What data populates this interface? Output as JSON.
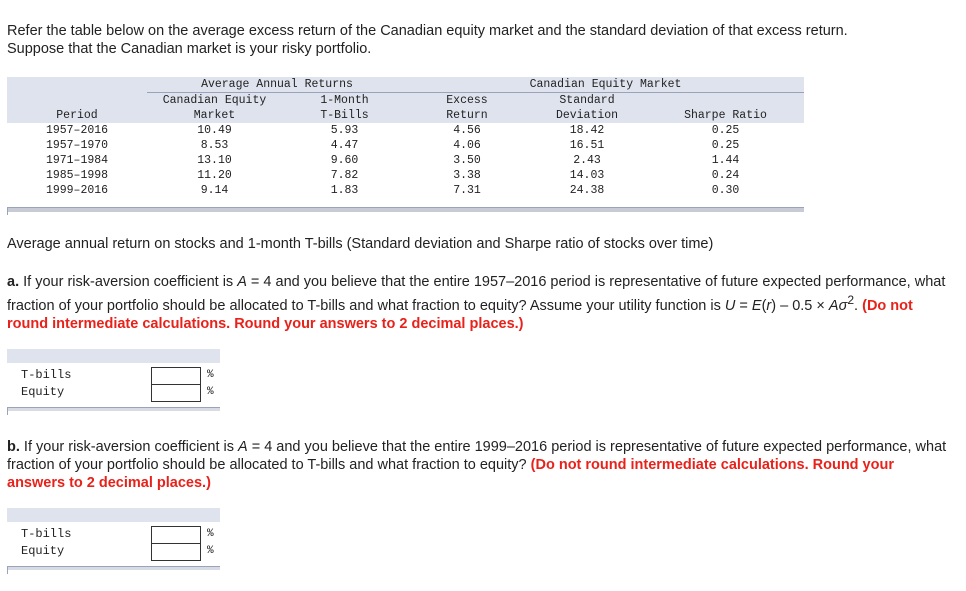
{
  "intro": {
    "line1": "Refer the table below on the average excess return of the Canadian equity market and the standard deviation of that excess return.",
    "line2": "Suppose that the Canadian market is your risky portfolio."
  },
  "table": {
    "group1": "Average Annual Returns",
    "group2": "Canadian Equity Market",
    "h_canadian_equity": "Canadian Equity",
    "h_one_month": "1-Month",
    "h_excess": "Excess",
    "h_standard": "Standard",
    "h_period": "Period",
    "h_market": "Market",
    "h_tbills": "T-Bills",
    "h_return": "Return",
    "h_deviation": "Deviation",
    "h_sharpe": "Sharpe Ratio",
    "rows": [
      {
        "period": "1957–2016",
        "market": "10.49",
        "tbills": "5.93",
        "excess": "4.56",
        "sd": "18.42",
        "sharpe": "0.25"
      },
      {
        "period": "1957–1970",
        "market": "8.53",
        "tbills": "4.47",
        "excess": "4.06",
        "sd": "16.51",
        "sharpe": "0.25"
      },
      {
        "period": "1971–1984",
        "market": "13.10",
        "tbills": "9.60",
        "excess": "3.50",
        "sd": "2.43",
        "sharpe": "1.44"
      },
      {
        "period": "1985–1998",
        "market": "11.20",
        "tbills": "7.82",
        "excess": "3.38",
        "sd": "14.03",
        "sharpe": "0.24"
      },
      {
        "period": "1999–2016",
        "market": "9.14",
        "tbills": "1.83",
        "excess": "7.31",
        "sd": "24.38",
        "sharpe": "0.30"
      }
    ]
  },
  "caption": "Average annual return on stocks and 1-month T-bills (Standard deviation and Sharpe ratio of stocks over time)",
  "qa": {
    "label": "a.",
    "text_before_A": " If your risk-aversion coefficient is ",
    "A": "A",
    "text_after_A": " = 4 and you believe that the entire 1957–2016 period is representative of future expected performance, what fraction of your portfolio should be allocated to T-bills and what fraction to equity? Assume your utility function is ",
    "U": "U",
    "eq_start": " = ",
    "E": "E",
    "r_open": "(",
    "r": "r",
    "r_close": ")",
    "minus": " – 0.5 × ",
    "A2": "A",
    "sigma": "σ",
    "sup": "2",
    "period": ". ",
    "instruction": "(Do not round intermediate calculations. Round your answers to 2 decimal places.)"
  },
  "qb": {
    "label": "b.",
    "text_before_A": " If your risk-aversion coefficient is ",
    "A": "A",
    "text_after_A": " = 4 and you believe that the entire 1999–2016 period is representative of future expected performance, what fraction of your portfolio should be allocated to T-bills and what fraction to equity? ",
    "instruction": "(Do not round intermediate calculations. Round your answers to 2 decimal places.)"
  },
  "answers_a": {
    "tbills_label": "T-bills",
    "equity_label": "Equity",
    "tbills_value": "",
    "equity_value": "",
    "unit": "%"
  },
  "answers_b": {
    "tbills_label": "T-bills",
    "equity_label": "Equity",
    "tbills_value": "",
    "equity_value": "",
    "unit": "%"
  }
}
